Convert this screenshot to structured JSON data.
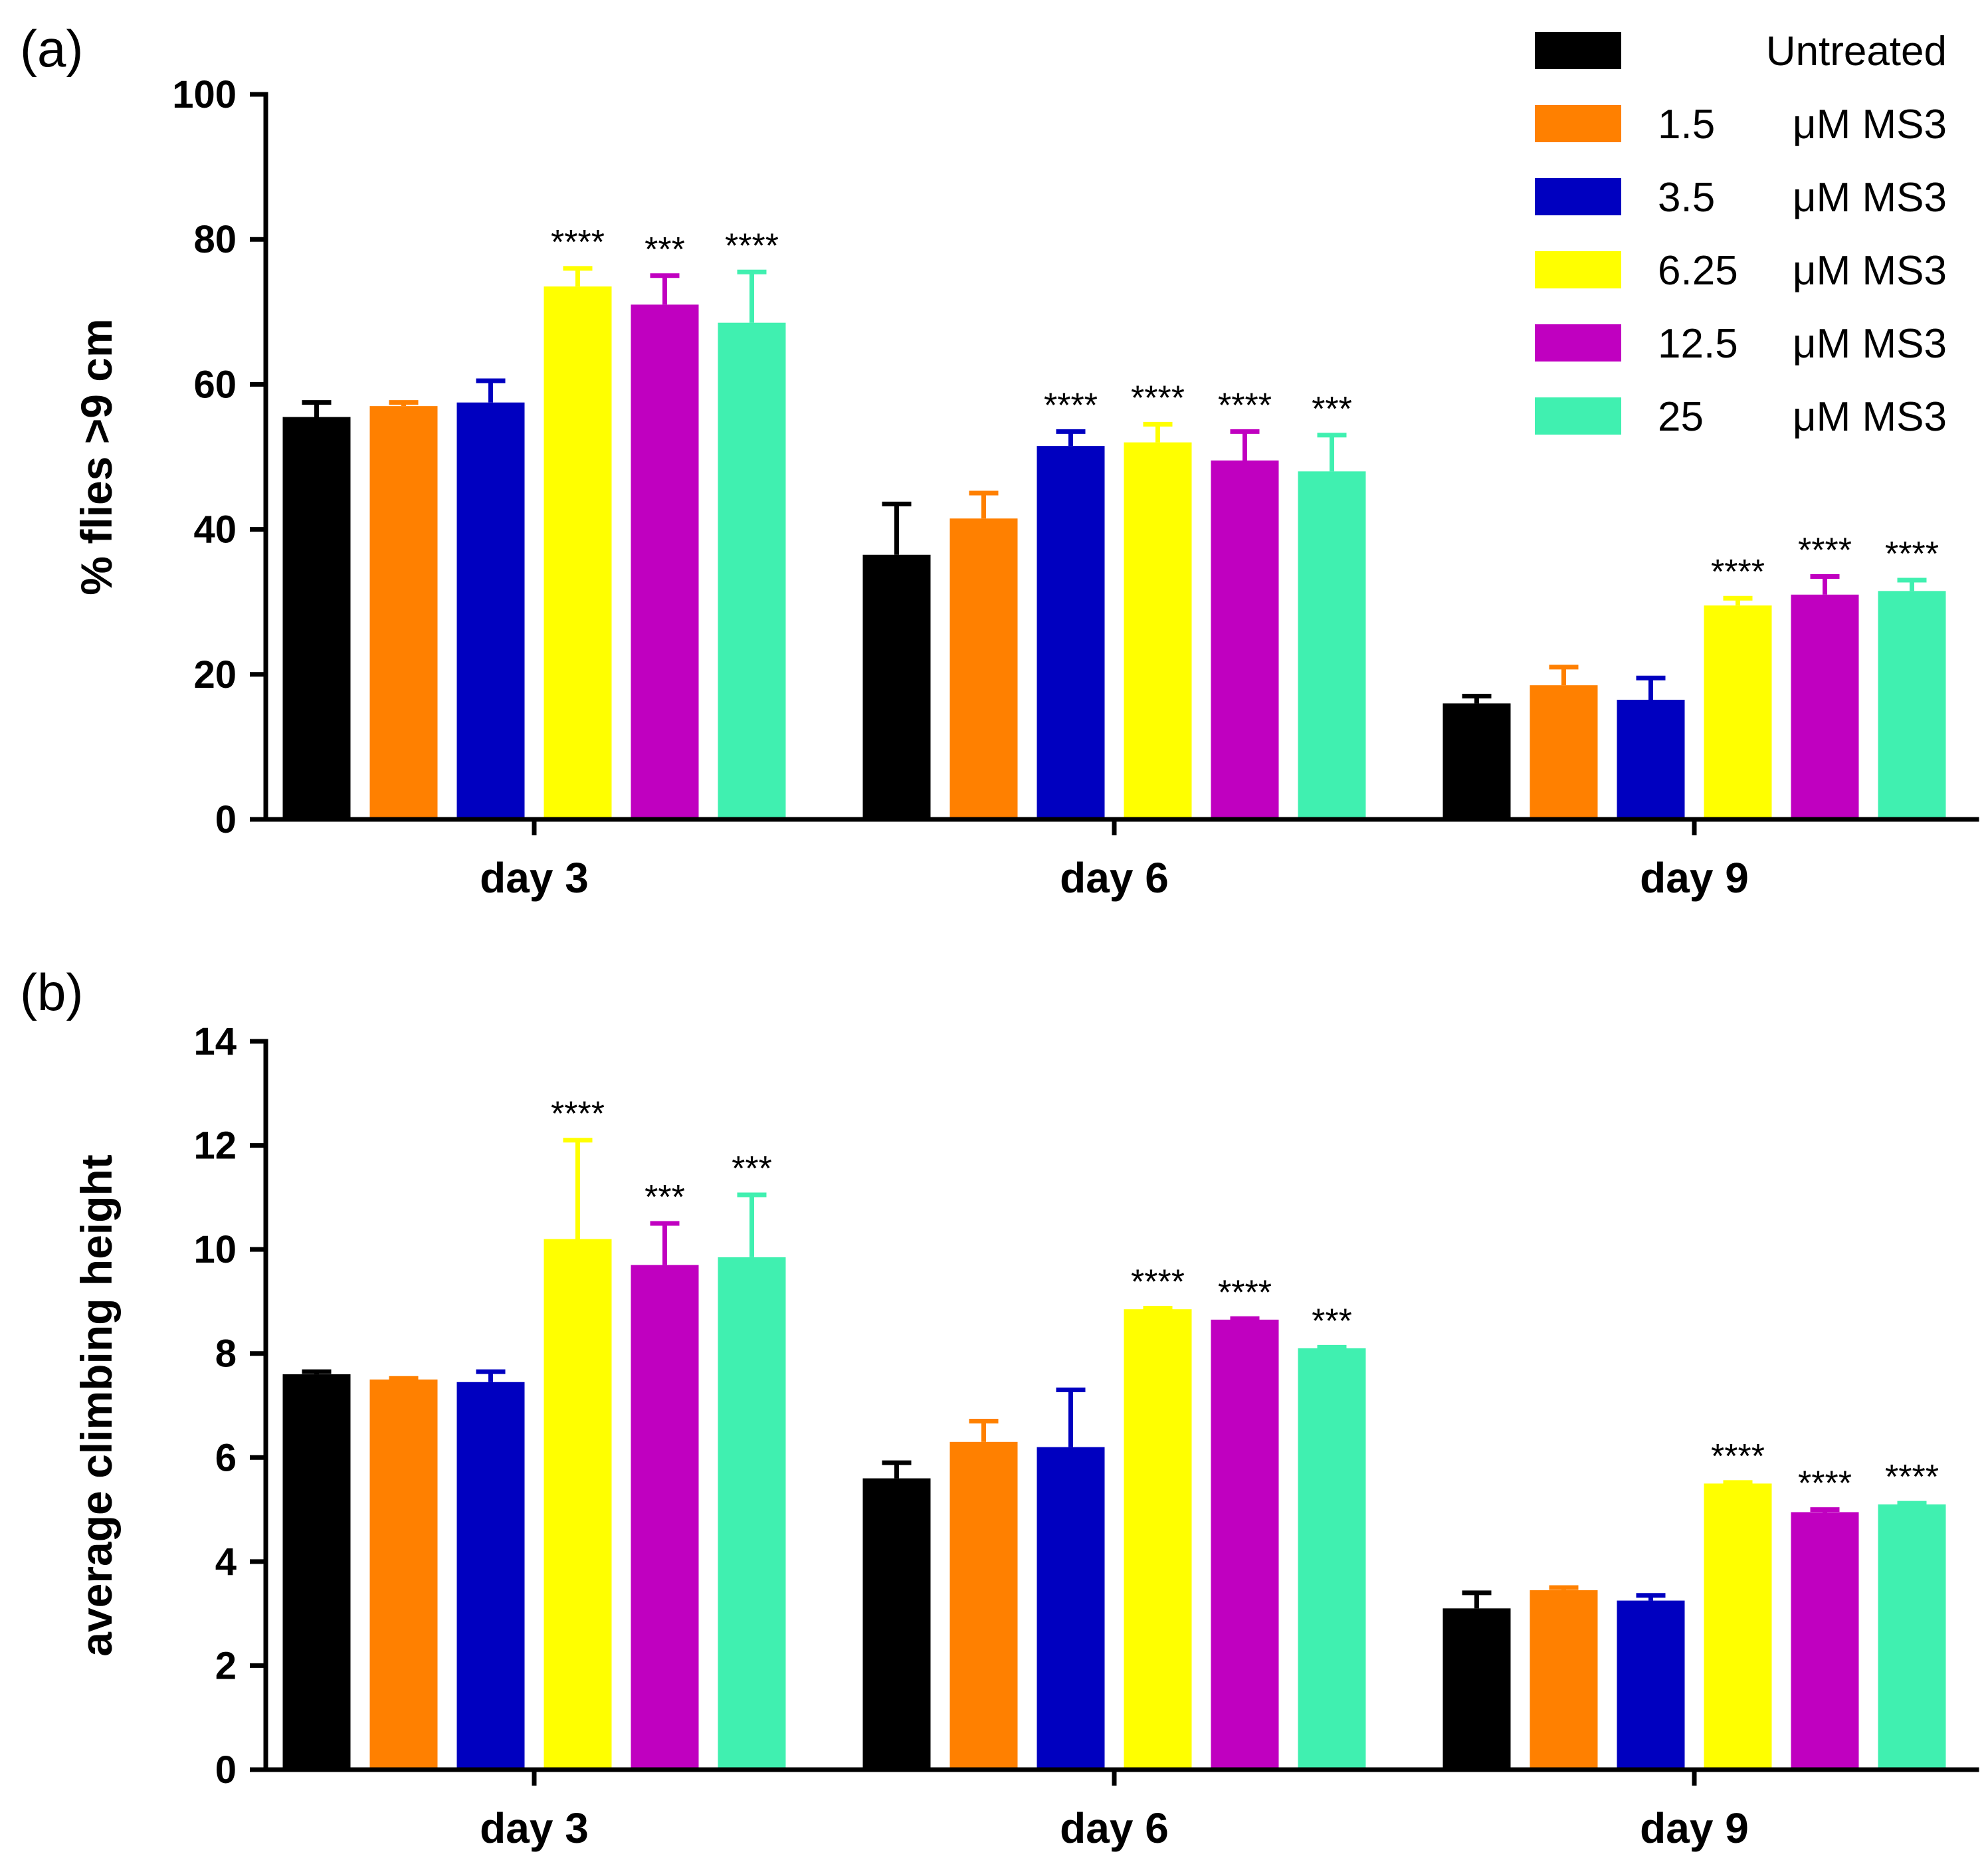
{
  "legend": [
    {
      "dose": "",
      "label": "Untreated",
      "color": "#000000"
    },
    {
      "dose": "1.5",
      "label": "μM MS3",
      "color": "#FF8000"
    },
    {
      "dose": "3.5",
      "label": "μM MS3",
      "color": "#0000C0"
    },
    {
      "dose": "6.25",
      "label": "μM MS3",
      "color": "#FFFF00"
    },
    {
      "dose": "12.5",
      "label": "μM MS3",
      "color": "#C000C0"
    },
    {
      "dose": "25",
      "label": "μM MS3",
      "color": "#40F0B0"
    }
  ],
  "chart_data": [
    {
      "type": "bar",
      "panel_label": "(a)",
      "ylabel": "% flies >9 cm",
      "xlabel": "",
      "ylim": [
        0,
        100
      ],
      "yticks": [
        0,
        20,
        40,
        60,
        80,
        100
      ],
      "categories": [
        "day 3",
        "day 6",
        "day 9"
      ],
      "series": [
        {
          "name": "Untreated",
          "color": "#000000",
          "values": [
            55.5,
            36.5,
            16
          ],
          "errors": [
            2,
            7,
            1
          ],
          "sig": [
            "",
            "",
            ""
          ]
        },
        {
          "name": "1.5 μM MS3",
          "color": "#FF8000",
          "values": [
            57,
            41.5,
            18.5
          ],
          "errors": [
            0.5,
            3.5,
            2.5
          ],
          "sig": [
            "",
            "",
            ""
          ]
        },
        {
          "name": "3.5 μM MS3",
          "color": "#0000C0",
          "values": [
            57.5,
            51.5,
            16.5
          ],
          "errors": [
            3,
            2,
            3
          ],
          "sig": [
            "",
            "****",
            ""
          ]
        },
        {
          "name": "6.25 μM MS3",
          "color": "#FFFF00",
          "values": [
            73.5,
            52,
            29.5
          ],
          "errors": [
            2.5,
            2.5,
            1
          ],
          "sig": [
            "****",
            "****",
            "****"
          ]
        },
        {
          "name": "12.5 μM MS3",
          "color": "#C000C0",
          "values": [
            71,
            49.5,
            31
          ],
          "errors": [
            4,
            4,
            2.5
          ],
          "sig": [
            "***",
            "****",
            "****"
          ]
        },
        {
          "name": "25 μM MS3",
          "color": "#40F0B0",
          "values": [
            68.5,
            48,
            31.5
          ],
          "errors": [
            7,
            5,
            1.5
          ],
          "sig": [
            "****",
            "***",
            "****"
          ]
        }
      ]
    },
    {
      "type": "bar",
      "panel_label": "(b)",
      "ylabel": "average climbing height",
      "xlabel": "",
      "ylim": [
        0,
        14
      ],
      "yticks": [
        0,
        2,
        4,
        6,
        8,
        10,
        12,
        14
      ],
      "categories": [
        "day 3",
        "day 6",
        "day 9"
      ],
      "series": [
        {
          "name": "Untreated",
          "color": "#000000",
          "values": [
            7.6,
            5.6,
            3.1
          ],
          "errors": [
            0.05,
            0.3,
            0.3
          ],
          "sig": [
            "",
            "",
            ""
          ]
        },
        {
          "name": "1.5 μM MS3",
          "color": "#FF8000",
          "values": [
            7.5,
            6.3,
            3.45
          ],
          "errors": [
            0.02,
            0.4,
            0.05
          ],
          "sig": [
            "",
            "",
            ""
          ]
        },
        {
          "name": "3.5 μM MS3",
          "color": "#0000C0",
          "values": [
            7.45,
            6.2,
            3.25
          ],
          "errors": [
            0.2,
            1.1,
            0.1
          ],
          "sig": [
            "",
            "",
            ""
          ]
        },
        {
          "name": "6.25 μM MS3",
          "color": "#FFFF00",
          "values": [
            10.2,
            8.85,
            5.5
          ],
          "errors": [
            1.9,
            0.02,
            0.02
          ],
          "sig": [
            "****",
            "****",
            "****"
          ]
        },
        {
          "name": "12.5 μM MS3",
          "color": "#C000C0",
          "values": [
            9.7,
            8.65,
            4.95
          ],
          "errors": [
            0.8,
            0.02,
            0.05
          ],
          "sig": [
            "***",
            "****",
            "****"
          ]
        },
        {
          "name": "25 μM MS3",
          "color": "#40F0B0",
          "values": [
            9.85,
            8.1,
            5.1
          ],
          "errors": [
            1.2,
            0.02,
            0.02
          ],
          "sig": [
            "***",
            "***",
            "****"
          ]
        }
      ]
    }
  ]
}
